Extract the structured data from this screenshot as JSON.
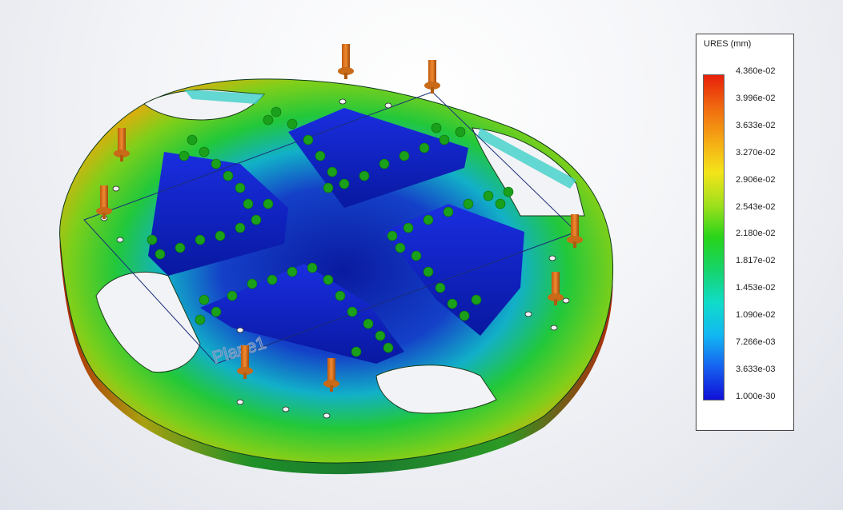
{
  "model": {
    "plane_label": "Plane1"
  },
  "legend": {
    "title": "URES (mm)",
    "ticks": [
      "4.360e-02",
      "3.996e-02",
      "3.633e-02",
      "3.270e-02",
      "2.906e-02",
      "2.543e-02",
      "2.180e-02",
      "1.817e-02",
      "1.453e-02",
      "1.090e-02",
      "7.266e-03",
      "3.633e-03",
      "1.000e-30"
    ],
    "colors": [
      "#e8200a",
      "#f06a10",
      "#f5a814",
      "#f4e41a",
      "#9fe01c",
      "#28d41a",
      "#16d46a",
      "#10dcc8",
      "#12b8f2",
      "#1660f0",
      "#1010d6"
    ]
  }
}
